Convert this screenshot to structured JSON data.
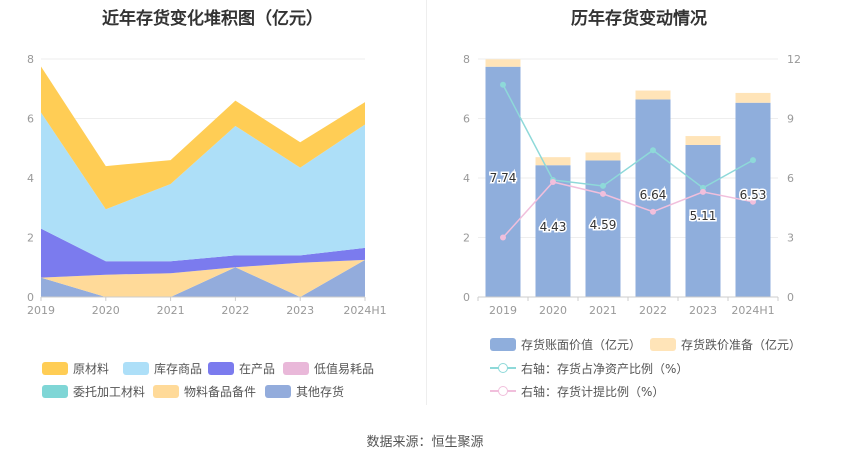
{
  "left": {
    "title": "近年存货变化堆积图（亿元）",
    "legend": [
      {
        "label": "原材料",
        "color": "#FFCD55"
      },
      {
        "label": "库存商品",
        "color": "#ADDFF8"
      },
      {
        "label": "在产品",
        "color": "#7B7BEE"
      },
      {
        "label": "低值易耗品",
        "color": "#E9B8D9"
      },
      {
        "label": "委托加工材料",
        "color": "#7FD6D6"
      },
      {
        "label": "物料备品备件",
        "color": "#FFDA99"
      },
      {
        "label": "其他存货",
        "color": "#93ACDC"
      }
    ]
  },
  "right": {
    "title": "历年存货变动情况",
    "legend": [
      {
        "label": "存货账面价值（亿元）",
        "color": "#8FAEDC",
        "kind": "bar"
      },
      {
        "label": "存货跌价准备（亿元）",
        "color": "#FFE4B8",
        "kind": "bar"
      },
      {
        "label": "右轴：存货占净资产比例（%）",
        "color": "#8ED9D9",
        "kind": "line"
      },
      {
        "label": "右轴：存货计提比例（%）",
        "color": "#F1BFDC",
        "kind": "line"
      }
    ]
  },
  "source": "数据来源：恒生聚源",
  "chart_data": [
    {
      "type": "area",
      "title": "近年存货变化堆积图（亿元）",
      "categories": [
        "2019",
        "2020",
        "2021",
        "2022",
        "2023",
        "2024H1"
      ],
      "ylim": [
        0,
        8
      ],
      "yticks": [
        0,
        2,
        4,
        6,
        8
      ],
      "stacked": true,
      "series": [
        {
          "name": "其他存货",
          "color": "#93ACDC",
          "values": [
            0.65,
            0.0,
            0.0,
            1.0,
            0.0,
            1.25
          ]
        },
        {
          "name": "物料备品备件",
          "color": "#FFDA99",
          "values": [
            0.0,
            0.75,
            0.8,
            0.0,
            1.15,
            0.0
          ]
        },
        {
          "name": "委托加工材料",
          "color": "#7FD6D6",
          "values": [
            0.0,
            0.0,
            0.0,
            0.0,
            0.0,
            0.0
          ]
        },
        {
          "name": "低值易耗品",
          "color": "#E9B8D9",
          "values": [
            0.0,
            0.0,
            0.0,
            0.0,
            0.0,
            0.0
          ]
        },
        {
          "name": "在产品",
          "color": "#7B7BEE",
          "values": [
            1.65,
            0.45,
            0.4,
            0.4,
            0.25,
            0.4
          ]
        },
        {
          "name": "库存商品",
          "color": "#ADDFF8",
          "values": [
            3.9,
            1.75,
            2.6,
            4.35,
            2.95,
            4.15
          ]
        },
        {
          "name": "原材料",
          "color": "#FFCD55",
          "values": [
            1.55,
            1.45,
            0.8,
            0.85,
            0.85,
            0.75
          ]
        }
      ],
      "legend_position": "bottom"
    },
    {
      "type": "bar",
      "title": "历年存货变动情况",
      "categories": [
        "2019",
        "2020",
        "2021",
        "2022",
        "2023",
        "2024H1"
      ],
      "ylim": [
        0,
        8
      ],
      "yticks": [
        0,
        2,
        4,
        6,
        8
      ],
      "y2lim": [
        0,
        12
      ],
      "y2ticks": [
        0,
        3,
        6,
        9,
        12
      ],
      "stacked": true,
      "series": [
        {
          "name": "存货账面价值（亿元）",
          "color": "#8FAEDC",
          "values": [
            7.74,
            4.43,
            4.59,
            6.64,
            5.11,
            6.53
          ],
          "labels": [
            "7.74",
            "4.43",
            "4.59",
            "6.64",
            "5.11",
            "6.53"
          ]
        },
        {
          "name": "存货跌价准备（亿元）",
          "color": "#FFE4B8",
          "values": [
            0.25,
            0.27,
            0.27,
            0.3,
            0.3,
            0.33
          ]
        }
      ],
      "line_series": [
        {
          "name": "右轴：存货占净资产比例（%）",
          "color": "#8ED9D9",
          "axis": "right",
          "values": [
            10.7,
            5.9,
            5.6,
            7.4,
            5.5,
            6.9
          ]
        },
        {
          "name": "右轴：存货计提比例（%）",
          "color": "#F1BFDC",
          "axis": "right",
          "values": [
            3.0,
            5.8,
            5.2,
            4.3,
            5.3,
            4.8
          ]
        }
      ],
      "legend_position": "bottom"
    }
  ]
}
